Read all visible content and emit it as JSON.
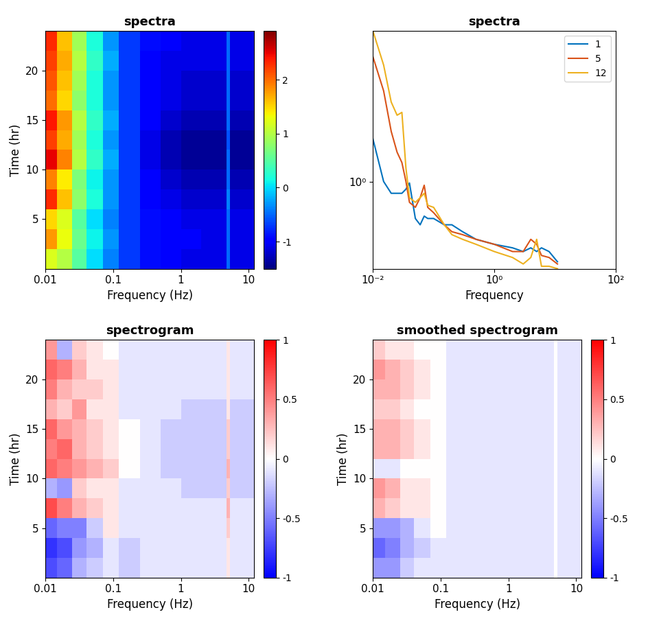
{
  "chart_data": [
    {
      "type": "heatmap",
      "title": "spectra",
      "x_label": "Frequency (Hz)",
      "y_label": "Time (hr)",
      "log": "x",
      "color": "jet",
      "x_edges": [
        0.01,
        0.015,
        0.025,
        0.04,
        0.07,
        0.12,
        0.25,
        0.5,
        1,
        2,
        4.7,
        5.3,
        12
      ],
      "y_edges": [
        0,
        2,
        4,
        6,
        8,
        10,
        12,
        14,
        16,
        18,
        20,
        22,
        24
      ],
      "values": [
        [
          1.2,
          1.0,
          0.5,
          0.0,
          -0.4,
          -0.7,
          -0.9,
          -1.0,
          -1.1,
          -1.1,
          -0.5,
          -1.1
        ],
        [
          1.8,
          1.3,
          0.6,
          0.1,
          -0.3,
          -0.7,
          -0.9,
          -1.0,
          -1.0,
          -1.1,
          -0.5,
          -1.1
        ],
        [
          1.5,
          1.2,
          0.5,
          0.0,
          -0.4,
          -0.7,
          -0.9,
          -1.0,
          -1.1,
          -1.1,
          -0.5,
          -1.1
        ],
        [
          2.3,
          1.6,
          0.8,
          0.2,
          -0.3,
          -0.7,
          -1.0,
          -1.1,
          -1.2,
          -1.2,
          -0.4,
          -1.2
        ],
        [
          1.9,
          1.4,
          0.7,
          0.1,
          -0.3,
          -0.7,
          -1.0,
          -1.2,
          -1.3,
          -1.3,
          -0.5,
          -1.3
        ],
        [
          2.5,
          1.9,
          1.0,
          0.3,
          -0.2,
          -0.7,
          -1.1,
          -1.3,
          -1.4,
          -1.4,
          -0.5,
          -1.4
        ],
        [
          2.2,
          1.7,
          0.9,
          0.2,
          -0.3,
          -0.7,
          -1.1,
          -1.3,
          -1.4,
          -1.4,
          -0.6,
          -1.4
        ],
        [
          2.4,
          1.8,
          1.0,
          0.3,
          -0.2,
          -0.7,
          -1.0,
          -1.2,
          -1.3,
          -1.3,
          -0.5,
          -1.3
        ],
        [
          2.0,
          1.5,
          0.8,
          0.2,
          -0.3,
          -0.7,
          -1.0,
          -1.1,
          -1.2,
          -1.2,
          -0.5,
          -1.2
        ],
        [
          2.1,
          1.6,
          0.9,
          0.2,
          -0.3,
          -0.7,
          -1.0,
          -1.1,
          -1.2,
          -1.2,
          -0.5,
          -1.2
        ],
        [
          2.2,
          1.7,
          1.0,
          0.3,
          -0.2,
          -0.7,
          -1.0,
          -1.1,
          -1.1,
          -1.1,
          -0.5,
          -1.1
        ],
        [
          2.3,
          1.6,
          0.9,
          0.2,
          -0.3,
          -0.7,
          -0.9,
          -1.0,
          -1.1,
          -1.1,
          -0.5,
          -1.1
        ]
      ],
      "xlim": [
        0.01,
        12
      ],
      "xticks": [
        0.01,
        0.1,
        1,
        10
      ],
      "ylim": [
        0,
        24
      ],
      "yticks": [
        5,
        10,
        15,
        20
      ],
      "colorbar_range": [
        -1.5,
        2.9
      ],
      "colorbar_ticks": [
        -1,
        0,
        1,
        2
      ]
    },
    {
      "type": "line",
      "title": "spectra",
      "x_label": "Frequency",
      "log": true,
      "legend": "upper right",
      "x": [
        0.01,
        0.015,
        0.02,
        0.025,
        0.03,
        0.035,
        0.04,
        0.05,
        0.06,
        0.07,
        0.08,
        0.1,
        0.15,
        0.2,
        0.3,
        0.5,
        1,
        2,
        3,
        4,
        5,
        6,
        8,
        11
      ],
      "series": [
        {
          "name": "1",
          "color": "#0072BD",
          "values": [
            1.8,
            1.0,
            0.85,
            0.85,
            0.85,
            0.9,
            0.98,
            0.6,
            0.55,
            0.62,
            0.6,
            0.6,
            0.55,
            0.55,
            0.5,
            0.45,
            0.42,
            0.4,
            0.38,
            0.4,
            0.38,
            0.4,
            0.38,
            0.33
          ]
        },
        {
          "name": "5",
          "color": "#D95319",
          "values": [
            5.6,
            3.5,
            2.0,
            1.5,
            1.3,
            1.0,
            0.75,
            0.7,
            0.8,
            0.95,
            0.7,
            0.65,
            0.55,
            0.5,
            0.48,
            0.45,
            0.42,
            0.38,
            0.38,
            0.45,
            0.42,
            0.36,
            0.35,
            0.32
          ]
        },
        {
          "name": "12",
          "color": "#EDB120",
          "values": [
            8,
            5,
            3.0,
            2.5,
            2.6,
            1.2,
            0.8,
            0.75,
            0.8,
            0.85,
            0.72,
            0.7,
            0.55,
            0.48,
            0.45,
            0.42,
            0.38,
            0.35,
            0.32,
            0.35,
            0.45,
            0.31,
            0.31,
            0.3
          ]
        }
      ],
      "xlim": [
        0.01,
        100
      ],
      "xticks": [
        {
          "value": 0.01,
          "label": "10⁻²"
        },
        {
          "value": 1,
          "label": "10⁰"
        },
        {
          "value": 100,
          "label": "10²"
        }
      ],
      "ylim": [
        0.3,
        8
      ],
      "yticks": [
        {
          "value": 1,
          "label": "10⁰"
        }
      ]
    },
    {
      "type": "heatmap",
      "title": "spectrogram",
      "x_label": "Frequency (Hz)",
      "y_label": "Time (hr)",
      "log": "x",
      "color": "bwr",
      "x_edges": [
        0.01,
        0.015,
        0.025,
        0.04,
        0.07,
        0.12,
        0.25,
        0.5,
        1,
        2,
        4.7,
        5.3,
        12
      ],
      "y_edges": [
        0,
        2,
        4,
        6,
        8,
        10,
        12,
        14,
        16,
        18,
        20,
        22,
        24
      ],
      "values": [
        [
          -0.7,
          -0.6,
          -0.3,
          -0.2,
          -0.1,
          -0.2,
          -0.1,
          -0.1,
          -0.1,
          -0.1,
          0.1,
          -0.1
        ],
        [
          -0.8,
          -0.7,
          -0.4,
          -0.3,
          -0.1,
          -0.2,
          -0.1,
          -0.1,
          -0.1,
          -0.1,
          0.1,
          -0.1
        ],
        [
          -0.6,
          -0.5,
          -0.5,
          -0.2,
          0.1,
          -0.1,
          -0.1,
          -0.1,
          -0.1,
          -0.1,
          0.2,
          -0.1
        ],
        [
          0.7,
          0.5,
          0.3,
          0.2,
          0.1,
          -0.1,
          -0.1,
          -0.1,
          -0.1,
          -0.1,
          0.3,
          -0.1
        ],
        [
          -0.3,
          -0.4,
          0.2,
          0.1,
          0.1,
          -0.1,
          -0.1,
          -0.1,
          -0.2,
          -0.2,
          0.2,
          -0.2
        ],
        [
          0.6,
          0.5,
          0.4,
          0.3,
          0.2,
          0.0,
          -0.1,
          -0.2,
          -0.2,
          -0.2,
          0.3,
          -0.2
        ],
        [
          0.5,
          0.6,
          0.3,
          0.2,
          0.1,
          0.0,
          -0.1,
          -0.2,
          -0.2,
          -0.2,
          0.2,
          -0.2
        ],
        [
          0.6,
          0.4,
          0.3,
          0.2,
          0.1,
          0.0,
          -0.1,
          -0.2,
          -0.2,
          -0.2,
          0.2,
          -0.2
        ],
        [
          0.3,
          0.2,
          0.4,
          0.1,
          0.1,
          -0.1,
          -0.1,
          -0.1,
          -0.2,
          -0.2,
          0.1,
          -0.2
        ],
        [
          0.5,
          0.3,
          0.2,
          0.2,
          0.1,
          -0.1,
          -0.1,
          -0.1,
          -0.1,
          -0.1,
          0.1,
          -0.1
        ],
        [
          0.6,
          0.5,
          0.3,
          0.1,
          0.1,
          -0.1,
          -0.1,
          -0.1,
          -0.1,
          -0.1,
          0.1,
          -0.1
        ],
        [
          0.4,
          -0.3,
          0.2,
          0.1,
          0.0,
          -0.1,
          -0.1,
          -0.1,
          -0.1,
          -0.1,
          0.1,
          -0.1
        ]
      ],
      "xlim": [
        0.01,
        12
      ],
      "xticks": [
        0.01,
        0.1,
        1,
        10
      ],
      "ylim": [
        0,
        24
      ],
      "yticks": [
        5,
        10,
        15,
        20
      ],
      "colorbar_range": [
        -1,
        1
      ],
      "colorbar_ticks": [
        -1,
        -0.5,
        0,
        0.5,
        1
      ]
    },
    {
      "type": "heatmap",
      "title": "smoothed spectrogram",
      "x_label": "Frequency (Hz)",
      "y_label": "Time (hr)",
      "log": "x",
      "color": "bwr",
      "x_edges": [
        0.01,
        0.015,
        0.025,
        0.04,
        0.07,
        0.12,
        0.25,
        0.5,
        1,
        2,
        4.7,
        5.3,
        12
      ],
      "y_edges": [
        0,
        2,
        4,
        6,
        8,
        10,
        12,
        14,
        16,
        18,
        20,
        22,
        24
      ],
      "values": [
        [
          -0.4,
          -0.4,
          -0.2,
          -0.1,
          -0.1,
          -0.1,
          -0.1,
          -0.1,
          -0.1,
          -0.1,
          0.0,
          -0.1
        ],
        [
          -0.6,
          -0.5,
          -0.3,
          -0.2,
          -0.1,
          -0.1,
          -0.1,
          -0.1,
          -0.1,
          -0.1,
          0.0,
          -0.1
        ],
        [
          -0.4,
          -0.4,
          -0.3,
          -0.1,
          0.0,
          -0.1,
          -0.1,
          -0.1,
          -0.1,
          -0.1,
          0.0,
          -0.1
        ],
        [
          0.3,
          0.2,
          0.1,
          0.1,
          0.0,
          -0.1,
          -0.1,
          -0.1,
          -0.1,
          -0.1,
          0.0,
          -0.1
        ],
        [
          0.4,
          0.3,
          0.1,
          0.1,
          0.0,
          -0.1,
          -0.1,
          -0.1,
          -0.1,
          -0.1,
          0.0,
          -0.1
        ],
        [
          -0.1,
          -0.1,
          0.0,
          0.0,
          0.0,
          -0.1,
          -0.1,
          -0.1,
          -0.1,
          -0.1,
          0.0,
          -0.1
        ],
        [
          0.3,
          0.3,
          0.2,
          0.1,
          0.0,
          -0.1,
          -0.1,
          -0.1,
          -0.1,
          -0.1,
          0.0,
          -0.1
        ],
        [
          0.3,
          0.3,
          0.2,
          0.1,
          0.0,
          -0.1,
          -0.1,
          -0.1,
          -0.1,
          -0.1,
          0.0,
          -0.1
        ],
        [
          0.2,
          0.2,
          0.1,
          0.0,
          0.0,
          -0.1,
          -0.1,
          -0.1,
          -0.1,
          -0.1,
          0.0,
          -0.1
        ],
        [
          0.3,
          0.3,
          0.2,
          0.1,
          0.0,
          -0.1,
          -0.1,
          -0.1,
          -0.1,
          -0.1,
          0.0,
          -0.1
        ],
        [
          0.4,
          0.3,
          0.2,
          0.1,
          0.0,
          -0.1,
          -0.1,
          -0.1,
          -0.1,
          -0.1,
          0.0,
          -0.1
        ],
        [
          0.2,
          0.1,
          0.1,
          0.0,
          0.0,
          -0.1,
          -0.1,
          -0.1,
          -0.1,
          -0.1,
          0.0,
          -0.1
        ]
      ],
      "xlim": [
        0.01,
        12
      ],
      "xticks": [
        0.01,
        0.1,
        1,
        10
      ],
      "ylim": [
        0,
        24
      ],
      "yticks": [
        5,
        10,
        15,
        20
      ],
      "colorbar_range": [
        -1,
        1
      ],
      "colorbar_ticks": [
        -1,
        -0.5,
        0,
        0.5,
        1
      ]
    }
  ]
}
